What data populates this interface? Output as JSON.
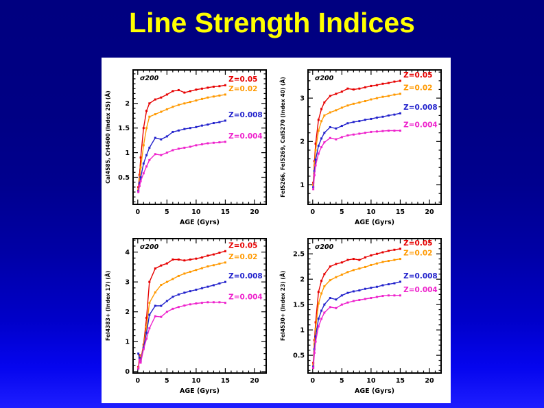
{
  "slide": {
    "title": "Line Strength Indices",
    "title_color": "#ffff00",
    "background_top": "#000080",
    "background_bottom": "#1e1eff",
    "panel_background": "#ffffff"
  },
  "legend": {
    "entries": [
      {
        "label": "Z=0.05",
        "color": "#e60000"
      },
      {
        "label": "Z=0.02",
        "color": "#ff9900"
      },
      {
        "label": "Z=0.008",
        "color": "#2222cc"
      },
      {
        "label": "Z=0.004",
        "color": "#ee22cc"
      }
    ]
  },
  "chart_data": [
    {
      "type": "line",
      "position": "top-left",
      "annotation": "σ200",
      "xlabel": "AGE (Gyrs)",
      "ylabel": "CaI4585, CrI4600 (Index 25) (Å)",
      "xlim": [
        -0.8,
        22
      ],
      "ylim": [
        -0.05,
        2.68
      ],
      "xticks": [
        0,
        5,
        10,
        15,
        20
      ],
      "x_minor_step": 1,
      "yticks": [
        0.5,
        1,
        1.5,
        2
      ],
      "y_minor_step": 0.1,
      "x": [
        0.1,
        0.3,
        0.5,
        1,
        1.5,
        2,
        3,
        4,
        5,
        6,
        7,
        8,
        9,
        10,
        11,
        12,
        13,
        14,
        15
      ],
      "series": [
        {
          "name": "Z=0.05",
          "color": "#e60000",
          "values": [
            0.3,
            0.55,
            0.9,
            1.5,
            1.85,
            2.0,
            2.08,
            2.12,
            2.18,
            2.25,
            2.27,
            2.22,
            2.25,
            2.28,
            2.3,
            2.32,
            2.34,
            2.35,
            2.37
          ]
        },
        {
          "name": "Z=0.02",
          "color": "#ff9900",
          "values": [
            0.25,
            0.45,
            0.7,
            1.15,
            1.5,
            1.73,
            1.78,
            1.83,
            1.88,
            1.93,
            1.97,
            2.0,
            2.03,
            2.06,
            2.09,
            2.12,
            2.14,
            2.16,
            2.18
          ]
        },
        {
          "name": "Z=0.008",
          "color": "#2222cc",
          "values": [
            0.22,
            0.38,
            0.5,
            0.78,
            0.95,
            1.1,
            1.3,
            1.27,
            1.33,
            1.42,
            1.45,
            1.48,
            1.5,
            1.52,
            1.55,
            1.57,
            1.6,
            1.62,
            1.65
          ]
        },
        {
          "name": "Z=0.004",
          "color": "#ee22cc",
          "values": [
            0.2,
            0.32,
            0.42,
            0.58,
            0.72,
            0.85,
            0.97,
            0.95,
            1.0,
            1.05,
            1.08,
            1.1,
            1.12,
            1.15,
            1.17,
            1.19,
            1.2,
            1.21,
            1.22
          ]
        }
      ]
    },
    {
      "type": "line",
      "position": "top-right",
      "annotation": "σ200",
      "xlabel": "AGE (Gyrs)",
      "ylabel": "FeI5266, FeI5269, CaI5270 (Index 40) (Å)",
      "xlim": [
        -0.8,
        22
      ],
      "ylim": [
        0.55,
        3.65
      ],
      "xticks": [
        0,
        5,
        10,
        15,
        20
      ],
      "x_minor_step": 1,
      "yticks": [
        1,
        2,
        3
      ],
      "y_minor_step": 0.2,
      "x": [
        0.1,
        0.3,
        0.5,
        1,
        1.5,
        2,
        3,
        4,
        5,
        6,
        7,
        8,
        9,
        10,
        11,
        12,
        13,
        14,
        15
      ],
      "series": [
        {
          "name": "Z=0.05",
          "color": "#e60000",
          "values": [
            1.05,
            1.55,
            1.95,
            2.5,
            2.75,
            2.9,
            3.05,
            3.1,
            3.15,
            3.22,
            3.2,
            3.22,
            3.25,
            3.28,
            3.3,
            3.33,
            3.35,
            3.38,
            3.4
          ]
        },
        {
          "name": "Z=0.02",
          "color": "#ff9900",
          "values": [
            1.0,
            1.45,
            1.8,
            2.25,
            2.47,
            2.6,
            2.67,
            2.72,
            2.78,
            2.83,
            2.87,
            2.9,
            2.93,
            2.97,
            3.0,
            3.03,
            3.05,
            3.08,
            3.1
          ]
        },
        {
          "name": "Z=0.008",
          "color": "#2222cc",
          "values": [
            0.95,
            1.32,
            1.58,
            1.9,
            2.07,
            2.2,
            2.33,
            2.3,
            2.36,
            2.42,
            2.45,
            2.47,
            2.5,
            2.52,
            2.55,
            2.57,
            2.6,
            2.62,
            2.65
          ]
        },
        {
          "name": "Z=0.004",
          "color": "#ee22cc",
          "values": [
            0.9,
            1.22,
            1.45,
            1.72,
            1.87,
            1.98,
            2.08,
            2.05,
            2.1,
            2.14,
            2.16,
            2.18,
            2.2,
            2.22,
            2.23,
            2.24,
            2.25,
            2.25,
            2.25
          ]
        }
      ]
    },
    {
      "type": "line",
      "position": "bottom-left",
      "annotation": "σ200",
      "xlabel": "AGE (Gyrs)",
      "ylabel": "FeI4383+ (Index 17) (Å)",
      "xlim": [
        -0.8,
        22
      ],
      "ylim": [
        -0.05,
        4.45
      ],
      "xticks": [
        0,
        5,
        10,
        15,
        20
      ],
      "x_minor_step": 1,
      "yticks": [
        0,
        1,
        2,
        3,
        4
      ],
      "y_minor_step": 0.2,
      "x": [
        0.1,
        0.3,
        0.5,
        1,
        1.5,
        2,
        3,
        4,
        5,
        6,
        7,
        8,
        9,
        10,
        11,
        12,
        13,
        14,
        15
      ],
      "series": [
        {
          "name": "Z=0.05",
          "color": "#e60000",
          "values": [
            0.15,
            0.55,
            0.4,
            0.9,
            1.8,
            3.0,
            3.45,
            3.55,
            3.62,
            3.75,
            3.75,
            3.72,
            3.75,
            3.78,
            3.82,
            3.88,
            3.92,
            3.98,
            4.03
          ]
        },
        {
          "name": "Z=0.02",
          "color": "#ff9900",
          "values": [
            0.12,
            0.5,
            0.38,
            0.85,
            1.5,
            2.3,
            2.65,
            2.9,
            3.0,
            3.1,
            3.2,
            3.28,
            3.34,
            3.4,
            3.46,
            3.52,
            3.56,
            3.61,
            3.65
          ]
        },
        {
          "name": "Z=0.008",
          "color": "#2222cc",
          "values": [
            0.6,
            0.45,
            0.35,
            0.8,
            1.3,
            1.9,
            2.2,
            2.2,
            2.36,
            2.5,
            2.58,
            2.64,
            2.69,
            2.74,
            2.79,
            2.84,
            2.89,
            2.95,
            3.0
          ]
        },
        {
          "name": "Z=0.004",
          "color": "#ee22cc",
          "values": [
            0.1,
            0.4,
            0.3,
            0.75,
            1.1,
            1.45,
            1.85,
            1.83,
            2.0,
            2.1,
            2.16,
            2.21,
            2.25,
            2.28,
            2.3,
            2.32,
            2.32,
            2.32,
            2.3
          ]
        }
      ]
    },
    {
      "type": "line",
      "position": "bottom-right",
      "annotation": "σ200",
      "xlabel": "AGE (Gyrs)",
      "ylabel": "FeI4530+ (Index 23) (Å)",
      "xlim": [
        -0.8,
        22
      ],
      "ylim": [
        0.15,
        2.8
      ],
      "xticks": [
        0,
        5,
        10,
        15,
        20
      ],
      "x_minor_step": 1,
      "yticks": [
        0.5,
        1,
        1.5,
        2,
        2.5
      ],
      "y_minor_step": 0.1,
      "x": [
        0.1,
        0.3,
        0.5,
        1,
        1.5,
        2,
        3,
        4,
        5,
        6,
        7,
        8,
        9,
        10,
        11,
        12,
        13,
        14,
        15
      ],
      "series": [
        {
          "name": "Z=0.05",
          "color": "#e60000",
          "values": [
            0.35,
            0.8,
            1.15,
            1.75,
            1.97,
            2.1,
            2.25,
            2.3,
            2.33,
            2.38,
            2.4,
            2.38,
            2.43,
            2.47,
            2.5,
            2.53,
            2.56,
            2.58,
            2.6
          ]
        },
        {
          "name": "Z=0.02",
          "color": "#ff9900",
          "values": [
            0.32,
            0.72,
            1.02,
            1.52,
            1.72,
            1.86,
            1.98,
            2.04,
            2.09,
            2.14,
            2.18,
            2.21,
            2.24,
            2.28,
            2.31,
            2.34,
            2.36,
            2.38,
            2.4
          ]
        },
        {
          "name": "Z=0.008",
          "color": "#2222cc",
          "values": [
            0.28,
            0.62,
            0.87,
            1.22,
            1.38,
            1.5,
            1.63,
            1.6,
            1.68,
            1.73,
            1.76,
            1.78,
            1.81,
            1.83,
            1.85,
            1.88,
            1.9,
            1.92,
            1.95
          ]
        },
        {
          "name": "Z=0.004",
          "color": "#ee22cc",
          "values": [
            0.25,
            0.55,
            0.77,
            1.07,
            1.22,
            1.34,
            1.45,
            1.43,
            1.5,
            1.54,
            1.57,
            1.59,
            1.61,
            1.63,
            1.65,
            1.67,
            1.68,
            1.68,
            1.68
          ]
        }
      ]
    }
  ]
}
